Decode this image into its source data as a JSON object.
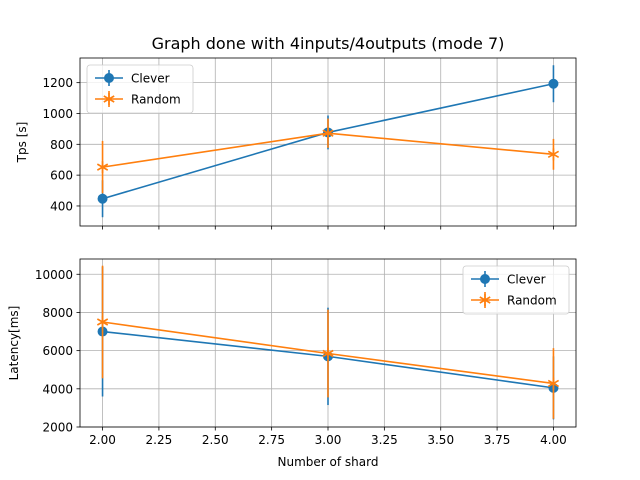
{
  "figure_title": "Graph done with 4inputs/4outputs (mode 7)",
  "colors": {
    "clever": "#1f77b4",
    "random": "#ff7f0e",
    "grid": "#b0b0b0"
  },
  "chart_data": [
    {
      "type": "line",
      "title": "Graph done with 4inputs/4outputs (mode 7)",
      "xlabel": "",
      "ylabel": "Tps [s]",
      "xlim": [
        1.9,
        4.1
      ],
      "ylim": [
        270,
        1360
      ],
      "xticks": [
        2.0,
        2.25,
        2.5,
        2.75,
        3.0,
        3.25,
        3.5,
        3.75,
        4.0
      ],
      "xtick_labels_visible": false,
      "yticks": [
        400,
        600,
        800,
        1000,
        1200
      ],
      "ytick_labels": [
        "400",
        "600",
        "800",
        "1000",
        "1200"
      ],
      "grid": true,
      "legend": "upper-left",
      "x": [
        2,
        3,
        4
      ],
      "series": [
        {
          "name": "Clever",
          "marker": "circle",
          "color": "#1f77b4",
          "values": [
            447,
            877,
            1193
          ],
          "errors": [
            120,
            110,
            120
          ]
        },
        {
          "name": "Random",
          "marker": "star",
          "color": "#ff7f0e",
          "values": [
            652,
            872,
            735
          ],
          "errors": [
            170,
            95,
            100
          ]
        }
      ]
    },
    {
      "type": "line",
      "title": "",
      "xlabel": "Number of shard",
      "ylabel": "Latency[ms]",
      "xlim": [
        1.9,
        4.1
      ],
      "ylim": [
        2000,
        10800
      ],
      "xticks": [
        2.0,
        2.25,
        2.5,
        2.75,
        3.0,
        3.25,
        3.5,
        3.75,
        4.0
      ],
      "xtick_labels": [
        "2.00",
        "2.25",
        "2.50",
        "2.75",
        "3.00",
        "3.25",
        "3.50",
        "3.75",
        "4.00"
      ],
      "yticks": [
        2000,
        4000,
        6000,
        8000,
        10000
      ],
      "ytick_labels": [
        "2000",
        "4000",
        "6000",
        "8000",
        "10000"
      ],
      "grid": true,
      "legend": "upper-right",
      "x": [
        2,
        3,
        4
      ],
      "series": [
        {
          "name": "Clever",
          "marker": "circle",
          "color": "#1f77b4",
          "values": [
            7000,
            5700,
            4050
          ],
          "errors": [
            3400,
            2550,
            1650
          ]
        },
        {
          "name": "Random",
          "marker": "star",
          "color": "#ff7f0e",
          "values": [
            7500,
            5850,
            4280
          ],
          "errors": [
            2950,
            2300,
            1850
          ]
        }
      ]
    }
  ]
}
